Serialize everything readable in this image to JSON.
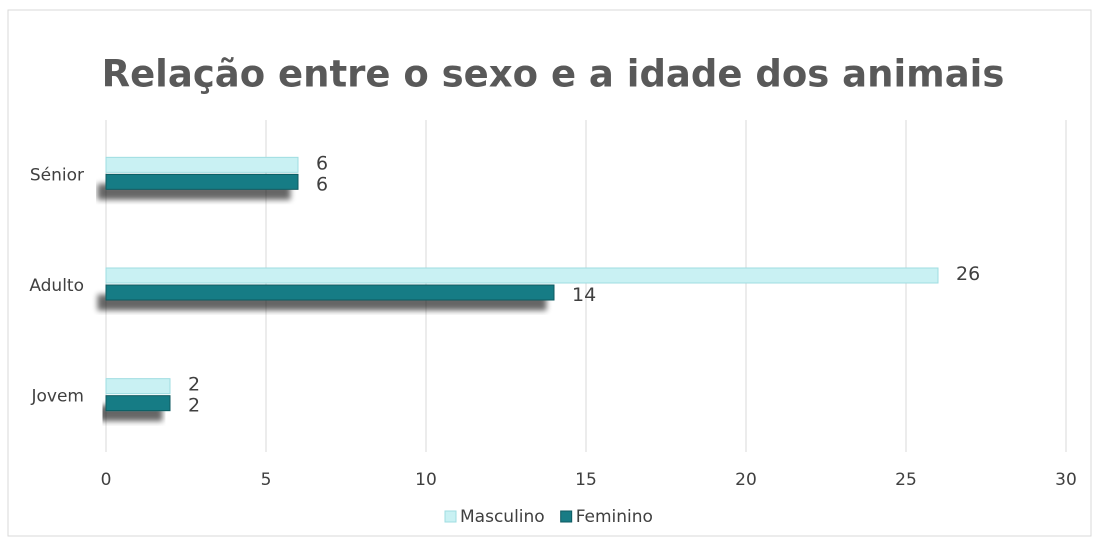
{
  "chart_data": {
    "type": "hbar",
    "title": "Relação entre o sexo e a idade dos animais",
    "categories": [
      "Jovem",
      "Adulto",
      "Sénior"
    ],
    "series": [
      {
        "name": "Masculino",
        "color": "#c9f1f3",
        "values": [
          2,
          26,
          6
        ]
      },
      {
        "name": "Feminino",
        "color": "#187c85",
        "values": [
          2,
          14,
          6
        ]
      }
    ],
    "xlim": [
      0,
      30
    ],
    "xticks": [
      0,
      5,
      10,
      15,
      20,
      25,
      30
    ],
    "grid": true,
    "legend": "bottom"
  }
}
